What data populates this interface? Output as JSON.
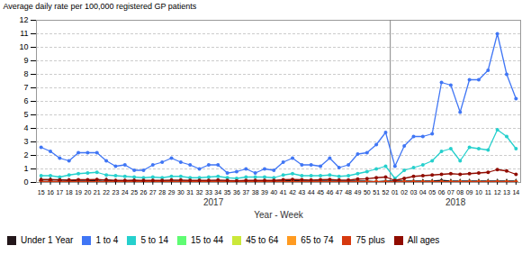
{
  "chart_data": {
    "type": "line",
    "xlabel": "Year - Week",
    "ylabel": "Average daily rate per 100,000 registered GP patients",
    "annotations": [
      "2017",
      "2018"
    ],
    "categories": [
      "15",
      "16",
      "17",
      "18",
      "19",
      "20",
      "21",
      "22",
      "23",
      "24",
      "25",
      "26",
      "27",
      "28",
      "29",
      "30",
      "31",
      "32",
      "33",
      "34",
      "35",
      "36",
      "37",
      "38",
      "39",
      "40",
      "41",
      "42",
      "43",
      "44",
      "45",
      "46",
      "47",
      "48",
      "49",
      "50",
      "51",
      "52",
      "01",
      "02",
      "03",
      "04",
      "05",
      "06",
      "07",
      "08",
      "09",
      "10",
      "11",
      "12",
      "13",
      "14"
    ],
    "ylim": [
      0,
      12
    ],
    "yticks": [
      0,
      1,
      2,
      3,
      4,
      5,
      6,
      7,
      8,
      9,
      10,
      11,
      12
    ],
    "grid": true,
    "legend": "bottom",
    "series": [
      {
        "name": "Under 1 Year",
        "marker": "triangle",
        "values": [
          0.2,
          0.2,
          0.2,
          0.15,
          0.1,
          0.1,
          0.15,
          0.2,
          0.1,
          0.1,
          0.15,
          0.1,
          0.1,
          0.1,
          0.1,
          0.1,
          0.1,
          0.1,
          0.1,
          0.1,
          0.1,
          0.1,
          0.05,
          0.1,
          0.1,
          0.1,
          0.1,
          0.15,
          0.1,
          0.1,
          0.1,
          0.1,
          0.1,
          0.1,
          0.1,
          0.1,
          0.05,
          0.1,
          0.1,
          0.1,
          0.1,
          0.1,
          0.1,
          0.15,
          0.1,
          0.1,
          0.1,
          0.1,
          0.1,
          0.1,
          0.1,
          0.1
        ]
      },
      {
        "name": "1 to 4",
        "marker": "circle",
        "values": [
          2.6,
          2.3,
          1.8,
          1.6,
          2.2,
          2.2,
          2.2,
          1.6,
          1.2,
          1.3,
          0.9,
          0.9,
          1.3,
          1.5,
          1.8,
          1.5,
          1.3,
          1.0,
          1.3,
          1.3,
          0.7,
          0.8,
          1.0,
          0.7,
          1.0,
          0.9,
          1.5,
          1.8,
          1.3,
          1.3,
          1.2,
          1.8,
          1.1,
          1.3,
          2.1,
          2.2,
          2.8,
          3.7,
          1.2,
          2.7,
          3.4,
          3.4,
          3.6,
          7.4,
          7.2,
          5.2,
          7.6,
          7.6,
          8.3,
          11.0,
          8.0,
          6.2
        ]
      },
      {
        "name": "5 to 14",
        "marker": "circle",
        "values": [
          0.5,
          0.5,
          0.4,
          0.55,
          0.65,
          0.7,
          0.75,
          0.55,
          0.5,
          0.45,
          0.4,
          0.35,
          0.4,
          0.35,
          0.45,
          0.45,
          0.35,
          0.35,
          0.4,
          0.45,
          0.35,
          0.3,
          0.4,
          0.4,
          0.4,
          0.35,
          0.55,
          0.65,
          0.5,
          0.5,
          0.5,
          0.55,
          0.45,
          0.5,
          0.65,
          0.8,
          1.0,
          1.2,
          0.3,
          0.9,
          1.1,
          1.3,
          1.6,
          2.3,
          2.5,
          1.6,
          2.6,
          2.5,
          2.4,
          3.9,
          3.4,
          2.5
        ]
      },
      {
        "name": "15 to 44",
        "marker": "circle",
        "values": [
          0.05,
          0.05,
          0.05,
          0.05,
          0.05,
          0.05,
          0.05,
          0.05,
          0.05,
          0.05,
          0.05,
          0.05,
          0.05,
          0.05,
          0.05,
          0.05,
          0.05,
          0.05,
          0.05,
          0.05,
          0.05,
          0.05,
          0.05,
          0.05,
          0.05,
          0.05,
          0.05,
          0.05,
          0.05,
          0.05,
          0.05,
          0.05,
          0.05,
          0.05,
          0.05,
          0.05,
          0.05,
          0.05,
          0.05,
          0.05,
          0.05,
          0.05,
          0.05,
          0.05,
          0.05,
          0.05,
          0.05,
          0.05,
          0.05,
          0.05,
          0.05,
          0.05
        ]
      },
      {
        "name": "45 to 64",
        "marker": "circle",
        "values": [
          0.03,
          0.03,
          0.03,
          0.03,
          0.03,
          0.03,
          0.03,
          0.03,
          0.03,
          0.03,
          0.03,
          0.03,
          0.03,
          0.03,
          0.03,
          0.03,
          0.03,
          0.03,
          0.03,
          0.03,
          0.03,
          0.03,
          0.03,
          0.03,
          0.03,
          0.03,
          0.03,
          0.03,
          0.03,
          0.03,
          0.03,
          0.03,
          0.03,
          0.03,
          0.03,
          0.03,
          0.03,
          0.03,
          0.03,
          0.03,
          0.03,
          0.03,
          0.03,
          0.03,
          0.03,
          0.03,
          0.03,
          0.03,
          0.03,
          0.03,
          0.03,
          0.03
        ]
      },
      {
        "name": "65 to 74",
        "marker": "circle",
        "values": [
          0.05,
          0.05,
          0.05,
          0.05,
          0.05,
          0.05,
          0.05,
          0.05,
          0.05,
          0.05,
          0.05,
          0.05,
          0.05,
          0.05,
          0.05,
          0.05,
          0.05,
          0.05,
          0.05,
          0.05,
          0.05,
          0.05,
          0.05,
          0.05,
          0.05,
          0.05,
          0.05,
          0.05,
          0.05,
          0.05,
          0.05,
          0.05,
          0.05,
          0.05,
          0.05,
          0.05,
          0.05,
          0.05,
          0.05,
          0.05,
          0.05,
          0.05,
          0.05,
          0.05,
          0.05,
          0.05,
          0.05,
          0.05,
          0.05,
          0.05,
          0.05,
          0.05
        ]
      },
      {
        "name": "75 plus",
        "marker": "circle",
        "values": [
          0.05,
          0.05,
          0.05,
          0.05,
          0.05,
          0.05,
          0.05,
          0.05,
          0.05,
          0.05,
          0.05,
          0.05,
          0.05,
          0.05,
          0.05,
          0.05,
          0.05,
          0.05,
          0.05,
          0.05,
          0.05,
          0.05,
          0.05,
          0.05,
          0.05,
          0.05,
          0.05,
          0.05,
          0.05,
          0.05,
          0.05,
          0.05,
          0.05,
          0.05,
          0.05,
          0.05,
          0.05,
          0.05,
          0.05,
          0.05,
          0.05,
          0.05,
          0.05,
          0.05,
          0.05,
          0.05,
          0.05,
          0.05,
          0.05,
          0.05,
          0.05,
          0.05
        ]
      },
      {
        "name": "All ages",
        "marker": "circle",
        "values": [
          0.2,
          0.2,
          0.18,
          0.18,
          0.2,
          0.2,
          0.22,
          0.18,
          0.15,
          0.15,
          0.15,
          0.15,
          0.15,
          0.15,
          0.18,
          0.18,
          0.15,
          0.15,
          0.15,
          0.18,
          0.15,
          0.12,
          0.15,
          0.15,
          0.15,
          0.15,
          0.2,
          0.22,
          0.2,
          0.18,
          0.2,
          0.22,
          0.18,
          0.18,
          0.25,
          0.28,
          0.35,
          0.4,
          0.15,
          0.3,
          0.45,
          0.5,
          0.55,
          0.6,
          0.65,
          0.6,
          0.65,
          0.7,
          0.75,
          0.95,
          0.85,
          0.6
        ]
      }
    ]
  }
}
